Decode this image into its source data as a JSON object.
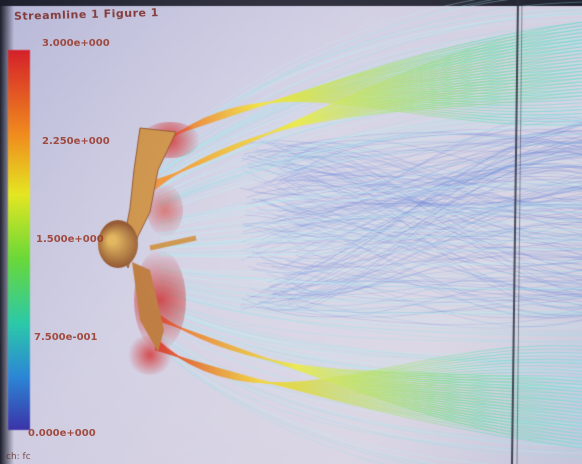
{
  "window": {
    "title": "Streamline 1 Figure 1"
  },
  "colorbar": {
    "labels": [
      "3.000e+000",
      "2.250e+000",
      "1.500e+000",
      "7.500e-001",
      "0.000e+000"
    ],
    "colors": [
      "#d4202a",
      "#f08a1e",
      "#e4e622",
      "#69d838",
      "#2bc9a9",
      "#2c86d6",
      "#3b33a8"
    ]
  },
  "footer": {
    "note": "ch: fc"
  },
  "colors": {
    "screen": "#c9cbe0",
    "body": "#c88a3a",
    "streamline_hot": "#d8262a"
  },
  "icons": {
    "object": "gymnast-icon"
  }
}
